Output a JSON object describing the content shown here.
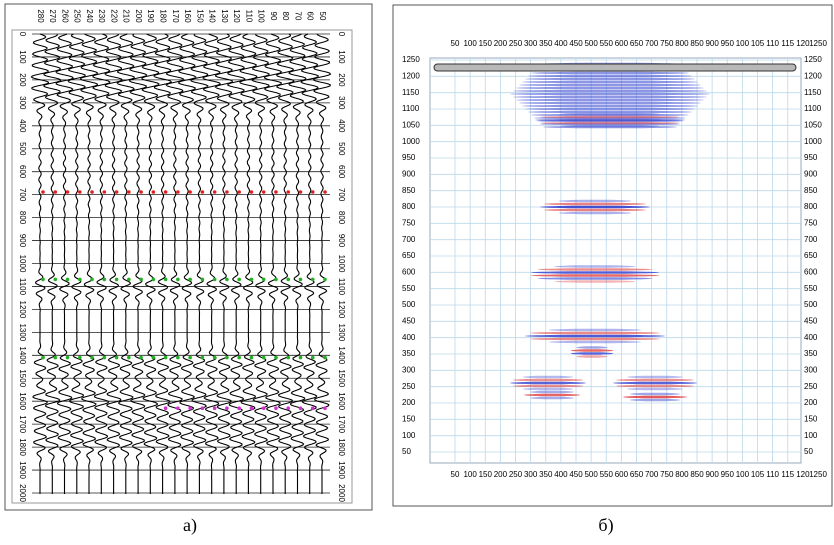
{
  "panel_a": {
    "top_labels": [
      280,
      270,
      260,
      250,
      240,
      230,
      220,
      210,
      200,
      190,
      180,
      170,
      160,
      150,
      140,
      130,
      120,
      110,
      100,
      90,
      80,
      70,
      60,
      50
    ],
    "depth_labels": [
      0,
      100,
      200,
      300,
      400,
      500,
      600,
      700,
      800,
      900,
      1000,
      1100,
      1200,
      1300,
      1400,
      1500,
      1600,
      1700,
      1800,
      1900,
      2000
    ],
    "caption": "а)"
  },
  "panel_b": {
    "x_labels": [
      50,
      100,
      150,
      200,
      250,
      300,
      350,
      400,
      450,
      500,
      550,
      600,
      650,
      700,
      750,
      800,
      850,
      900,
      950,
      100,
      105,
      110,
      115,
      120,
      1250
    ],
    "y_labels": [
      1250,
      1200,
      1150,
      1100,
      1050,
      1000,
      950,
      900,
      850,
      800,
      750,
      700,
      650,
      600,
      550,
      500,
      450,
      400,
      350,
      300,
      250,
      200,
      150,
      100,
      50
    ],
    "caption": "б)"
  }
}
